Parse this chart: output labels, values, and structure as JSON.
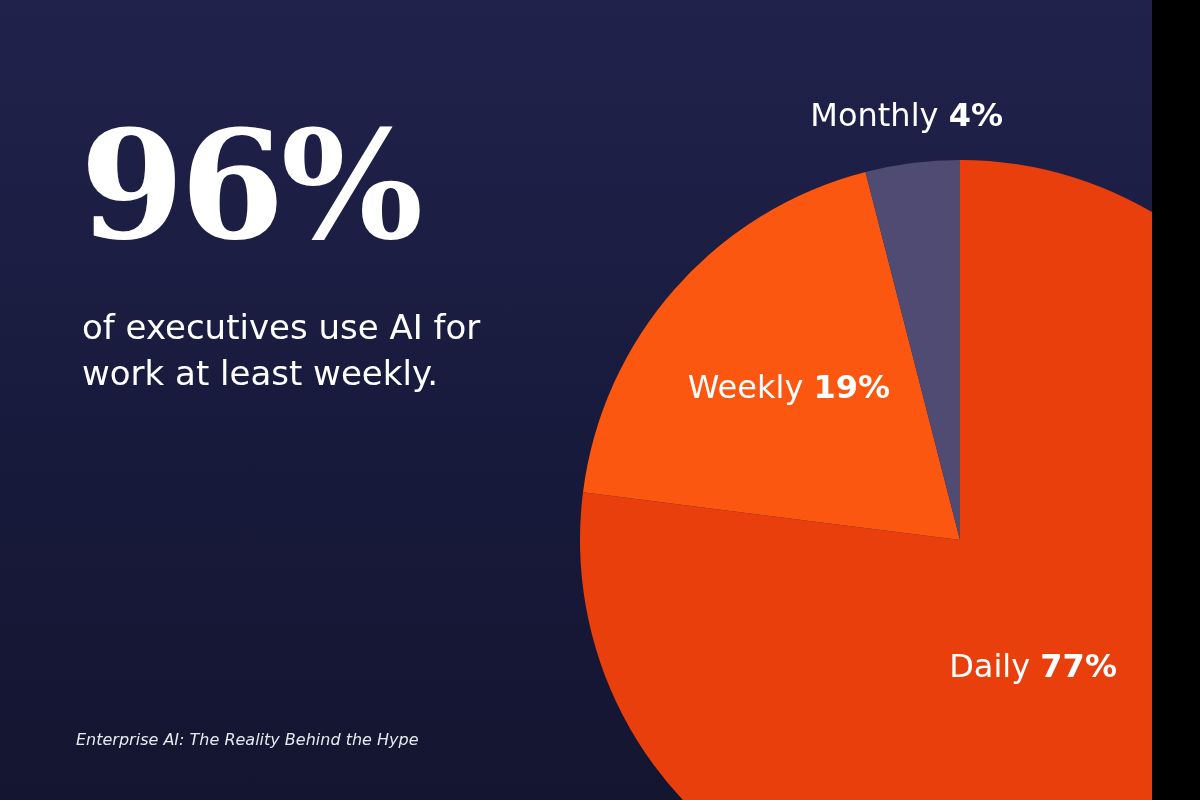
{
  "chart_data": {
    "type": "pie",
    "title": "96%",
    "subtitle": "of executives use AI for work at least weekly.",
    "annotations": [
      "Enterprise AI: The Reality Behind the Hype"
    ],
    "categories": [
      "Daily",
      "Weekly",
      "Monthly"
    ],
    "values": [
      77,
      19,
      4
    ],
    "colors": [
      "#e83f0c",
      "#fb5711",
      "#4f4b72"
    ],
    "value_labels": [
      "77%",
      "19%",
      "4%"
    ],
    "legend": false
  }
}
